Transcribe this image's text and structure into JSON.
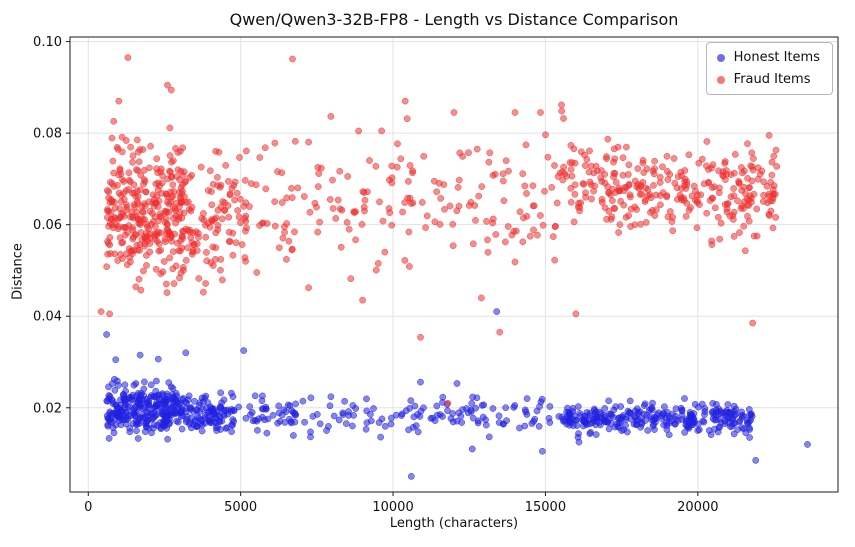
{
  "title": "Qwen/Qwen3-32B-FP8 - Length vs Distance Comparison",
  "chart_data": {
    "type": "scatter",
    "title": "Qwen/Qwen3-32B-FP8 - Length vs Distance Comparison",
    "xlabel": "Length (characters)",
    "ylabel": "Distance",
    "xlim": [
      -600,
      24600
    ],
    "ylim": [
      0.0016,
      0.101
    ],
    "x_ticks": [
      0,
      5000,
      10000,
      15000,
      20000
    ],
    "y_ticks": [
      0.02,
      0.04,
      0.06,
      0.08,
      0.1
    ],
    "grid": true,
    "grid_color": "#e2e2e2",
    "legend_position": "upper right",
    "seed": 42,
    "marker": {
      "radius": 3.1,
      "opacity": 0.55
    },
    "series": [
      {
        "name": "Honest Items",
        "color": "#2121e0",
        "summary": "Dense horizontal band near Distance 0.018-0.020 across all lengths; heaviest clusters at 700-3000 and 15500-21800 characters.",
        "clusters": [
          {
            "n": 230,
            "x": [
              600,
              2800
            ],
            "y_mean": 0.0197,
            "y_std": 0.0028,
            "y_clip": [
              0.013,
              0.031
            ]
          },
          {
            "n": 150,
            "x": [
              2400,
              4800
            ],
            "y_mean": 0.0185,
            "y_std": 0.0021,
            "y_clip": [
              0.013,
              0.027
            ]
          },
          {
            "n": 160,
            "x": [
              4800,
              15500
            ],
            "y_mean": 0.0182,
            "y_std": 0.002,
            "y_clip": [
              0.012,
              0.027
            ]
          },
          {
            "n": 290,
            "x": [
              15500,
              21800
            ],
            "y_mean": 0.0176,
            "y_std": 0.0016,
            "y_clip": [
              0.013,
              0.023
            ]
          }
        ],
        "outliers": [
          [
            600,
            0.036
          ],
          [
            900,
            0.0305
          ],
          [
            1700,
            0.0315
          ],
          [
            3200,
            0.032
          ],
          [
            5100,
            0.0325
          ],
          [
            13400,
            0.041
          ],
          [
            10900,
            0.0256
          ],
          [
            12100,
            0.0253
          ],
          [
            10600,
            0.005
          ],
          [
            12600,
            0.011
          ],
          [
            14900,
            0.0105
          ],
          [
            16100,
            0.0125
          ],
          [
            21700,
            0.0135
          ],
          [
            21900,
            0.0085
          ],
          [
            23600,
            0.012
          ]
        ]
      },
      {
        "name": "Fraud Items",
        "color": "#ee3030",
        "summary": "Broad band near Distance 0.055-0.080 across all lengths; heaviest clusters at 700-3200 and 15800-22600 characters; extremes up to ~0.097 and down to ~0.021.",
        "clusters": [
          {
            "n": 320,
            "x": [
              600,
              3200
            ],
            "y_mean": 0.0635,
            "y_std": 0.0075,
            "y_clip": [
              0.042,
              0.094
            ]
          },
          {
            "n": 110,
            "x": [
              3000,
              5200
            ],
            "y_mean": 0.062,
            "y_std": 0.007,
            "y_clip": [
              0.044,
              0.09
            ]
          },
          {
            "n": 190,
            "x": [
              5200,
              15800
            ],
            "y_mean": 0.065,
            "y_std": 0.008,
            "y_clip": [
              0.043,
              0.088
            ]
          },
          {
            "n": 300,
            "x": [
              15800,
              22600
            ],
            "y_mean": 0.0675,
            "y_std": 0.0048,
            "y_clip": [
              0.048,
              0.083
            ]
          }
        ],
        "outliers": [
          [
            1300,
            0.0965
          ],
          [
            6700,
            0.0962
          ],
          [
            2600,
            0.0905
          ],
          [
            1000,
            0.087
          ],
          [
            10400,
            0.087
          ],
          [
            12000,
            0.0845
          ],
          [
            14000,
            0.0845
          ],
          [
            420,
            0.041
          ],
          [
            700,
            0.0405
          ],
          [
            10900,
            0.0354
          ],
          [
            13500,
            0.0365
          ],
          [
            21800,
            0.0385
          ],
          [
            11800,
            0.021
          ],
          [
            16000,
            0.0405
          ],
          [
            12900,
            0.044
          ],
          [
            9000,
            0.0435
          ]
        ]
      }
    ]
  },
  "legend": {
    "items": [
      {
        "label": "Honest Items",
        "color": "#2121e0"
      },
      {
        "label": "Fraud Items",
        "color": "#ee3030"
      }
    ]
  }
}
